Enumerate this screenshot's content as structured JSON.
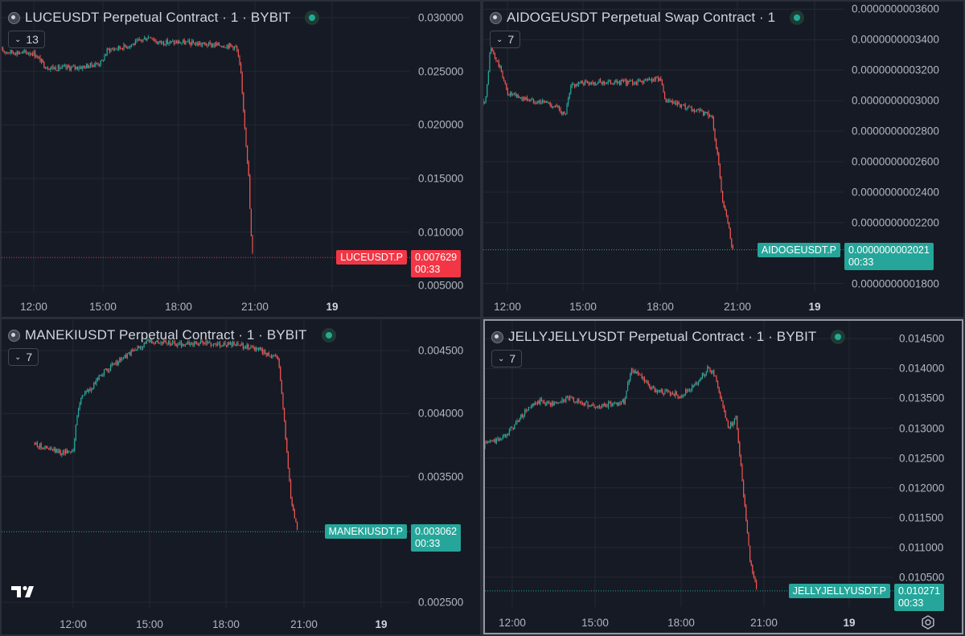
{
  "colors": {
    "background": "#161a25",
    "grid": "#242833",
    "up": "#26a69a",
    "down": "#ef5350",
    "axis_text": "#b2b5be",
    "last_up": "#26a69a",
    "last_down": "#f23645"
  },
  "icons": {
    "status": "status-dot-icon",
    "indicator": "chevron-down-icon",
    "logo": "tradingview-logo",
    "settings": "gear-icon"
  },
  "panels": [
    {
      "title": "LUCEUSDT Perpetual Contract · 1 · BYBIT",
      "indicator_count": "13",
      "y_ticks": [
        {
          "label": "0.030000",
          "v": 0.03
        },
        {
          "label": "0.025000",
          "v": 0.025
        },
        {
          "label": "0.020000",
          "v": 0.02
        },
        {
          "label": "0.015000",
          "v": 0.015
        },
        {
          "label": "0.010000",
          "v": 0.01
        },
        {
          "label": "0.005000",
          "v": 0.005
        }
      ],
      "x_ticks": [
        "12:00",
        "15:00",
        "18:00",
        "21:00",
        "19"
      ],
      "symbol_label": "LUCEUSDT.P",
      "last_price": "0.007629",
      "countdown": "00:33",
      "direction": "down"
    },
    {
      "title": "AIDOGEUSDT Perpetual Swap Contract · 1",
      "indicator_count": "7",
      "y_ticks": [
        {
          "label": "0.0000000003600",
          "v": 3600
        },
        {
          "label": "0.0000000003400",
          "v": 3400
        },
        {
          "label": "0.0000000003200",
          "v": 3200
        },
        {
          "label": "0.0000000003000",
          "v": 3000
        },
        {
          "label": "0.0000000002800",
          "v": 2800
        },
        {
          "label": "0.0000000002600",
          "v": 2600
        },
        {
          "label": "0.0000000002400",
          "v": 2400
        },
        {
          "label": "0.0000000002200",
          "v": 2200
        },
        {
          "label": "0.0000000001800",
          "v": 1800
        }
      ],
      "x_ticks": [
        "12:00",
        "15:00",
        "18:00",
        "21:00",
        "19"
      ],
      "symbol_label": "AIDOGEUSDT.P",
      "last_price": "0.0000000002021",
      "countdown": "00:33",
      "direction": "up"
    },
    {
      "title": "MANEKIUSDT Perpetual Contract · 1 · BYBIT",
      "indicator_count": "7",
      "y_ticks": [
        {
          "label": "0.004500",
          "v": 0.0045
        },
        {
          "label": "0.004000",
          "v": 0.004
        },
        {
          "label": "0.003500",
          "v": 0.0035
        },
        {
          "label": "0.002500",
          "v": 0.0025
        }
      ],
      "x_ticks": [
        "12:00",
        "15:00",
        "18:00",
        "21:00",
        "19"
      ],
      "symbol_label": "MANEKIUSDT.P",
      "last_price": "0.003062",
      "countdown": "00:33",
      "direction": "up"
    },
    {
      "title": "JELLYJELLYUSDT Perpetual Contract · 1 · BYBIT",
      "indicator_count": "7",
      "y_ticks": [
        {
          "label": "0.014500",
          "v": 0.0145
        },
        {
          "label": "0.014000",
          "v": 0.014
        },
        {
          "label": "0.013500",
          "v": 0.0135
        },
        {
          "label": "0.013000",
          "v": 0.013
        },
        {
          "label": "0.012500",
          "v": 0.0125
        },
        {
          "label": "0.012000",
          "v": 0.012
        },
        {
          "label": "0.011500",
          "v": 0.0115
        },
        {
          "label": "0.011000",
          "v": 0.011
        },
        {
          "label": "0.010500",
          "v": 0.0105
        }
      ],
      "x_ticks": [
        "12:00",
        "15:00",
        "18:00",
        "21:00",
        "19"
      ],
      "symbol_label": "JELLYJELLYUSDT.P",
      "last_price": "0.010271",
      "countdown": "00:33",
      "direction": "up"
    }
  ],
  "chart_data": [
    {
      "type": "candlestick",
      "title": "LUCEUSDT Perpetual Contract · 1 · BYBIT",
      "ylim": [
        0.0045,
        0.0315
      ],
      "x": [
        "10:30",
        "11:00",
        "12:00",
        "12:30",
        "13:00",
        "14:00",
        "14:45",
        "15:00",
        "15:30",
        "16:00",
        "16:45",
        "17:00",
        "18:00",
        "19:00",
        "20:00",
        "20:15",
        "20:25",
        "20:35",
        "20:45",
        "20:50",
        "20:55"
      ],
      "y": [
        0.027,
        0.0268,
        0.0267,
        0.0254,
        0.0253,
        0.0254,
        0.0258,
        0.027,
        0.0272,
        0.0275,
        0.0283,
        0.0277,
        0.0277,
        0.0275,
        0.0274,
        0.0272,
        0.025,
        0.02,
        0.015,
        0.01,
        0.0076
      ],
      "last": 0.007629
    },
    {
      "type": "candlestick",
      "title": "AIDOGEUSDT Perpetual Swap Contract · 1",
      "ylim": [
        1750,
        3650
      ],
      "x": [
        "10:30",
        "11:00",
        "11:10",
        "11:20",
        "11:45",
        "12:00",
        "12:30",
        "13:00",
        "13:30",
        "14:00",
        "14:15",
        "14:30",
        "15:00",
        "16:00",
        "17:00",
        "18:00",
        "18:05",
        "18:10",
        "18:30",
        "19:00",
        "20:00",
        "20:15",
        "20:25",
        "20:35",
        "20:45",
        "20:50"
      ],
      "y": [
        3000,
        2980,
        3020,
        3350,
        3200,
        3050,
        3020,
        3000,
        2990,
        2950,
        2900,
        3100,
        3120,
        3120,
        3120,
        3150,
        3050,
        3000,
        2980,
        2950,
        2900,
        2600,
        2350,
        2250,
        2080,
        2021
      ],
      "last": 2021
    },
    {
      "type": "candlestick",
      "title": "MANEKIUSDT Perpetual Contract · 1 · BYBIT",
      "ylim": [
        0.00245,
        0.00475
      ],
      "x": [
        "10:30",
        "11:00",
        "11:30",
        "12:00",
        "12:10",
        "12:20",
        "12:45",
        "13:00",
        "14:00",
        "14:45",
        "15:00",
        "16:00",
        "17:00",
        "18:00",
        "19:00",
        "19:30",
        "20:00",
        "20:15",
        "20:30",
        "20:45"
      ],
      "y": [
        0.00376,
        0.00372,
        0.00369,
        0.00371,
        0.004,
        0.00415,
        0.0042,
        0.0043,
        0.00445,
        0.00455,
        0.00458,
        0.00455,
        0.00456,
        0.00455,
        0.00453,
        0.00448,
        0.00445,
        0.0039,
        0.0033,
        0.00306
      ],
      "last": 0.003062
    },
    {
      "type": "candlestick",
      "title": "JELLYJELLYUSDT Perpetual Contract · 1 · BYBIT",
      "ylim": [
        0.01,
        0.0148
      ],
      "x": [
        "10:30",
        "11:00",
        "11:30",
        "12:00",
        "12:30",
        "13:00",
        "13:30",
        "14:00",
        "15:00",
        "16:00",
        "16:15",
        "16:30",
        "17:00",
        "18:00",
        "18:30",
        "19:00",
        "19:15",
        "19:30",
        "19:45",
        "20:00",
        "20:15",
        "20:30",
        "20:45"
      ],
      "y": [
        0.01265,
        0.01275,
        0.0128,
        0.013,
        0.0133,
        0.01345,
        0.0134,
        0.0135,
        0.01335,
        0.01345,
        0.014,
        0.0139,
        0.01365,
        0.01355,
        0.0137,
        0.014,
        0.0139,
        0.0134,
        0.013,
        0.0132,
        0.012,
        0.0108,
        0.0103
      ],
      "last": 0.010271
    }
  ]
}
